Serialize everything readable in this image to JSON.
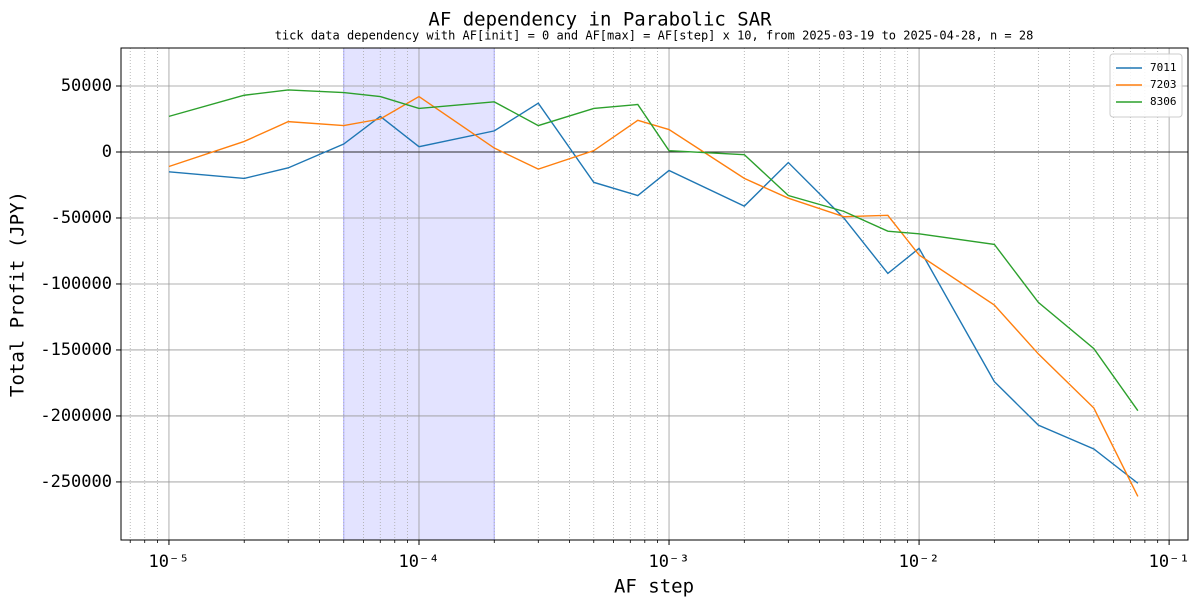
{
  "chart_data": {
    "type": "line",
    "title": "AF dependency in Parabolic SAR",
    "subtitle": "tick data dependency with AF[init] = 0 and AF[max] = AF[step] x 10, from 2025-03-19 to 2025-04-28, n = 28",
    "xlabel": "AF step",
    "ylabel": "Total Profit (JPY)",
    "xscale": "log",
    "grid": true,
    "legend": "upper right",
    "highlight": {
      "range": [
        5e-05,
        0.0002
      ],
      "color": "#0000ff"
    },
    "x": [
      1e-05,
      2e-05,
      3e-05,
      5e-05,
      7e-05,
      0.0001,
      0.0002,
      0.0003,
      0.0005,
      0.00075,
      0.001,
      0.002,
      0.003,
      0.005,
      0.0075,
      0.01,
      0.02,
      0.03,
      0.05,
      0.075
    ],
    "series": [
      {
        "name": "7011",
        "color": "#1f77b4",
        "values": [
          -15000,
          -20000,
          -12000,
          6000,
          27000,
          4000,
          16000,
          37000,
          -23000,
          -33000,
          -14000,
          -41000,
          -8000,
          -50000,
          -92000,
          -73000,
          -174000,
          -207000,
          -225000,
          -251000
        ]
      },
      {
        "name": "7203",
        "color": "#ff7f0e",
        "values": [
          -11000,
          8000,
          23000,
          20000,
          25000,
          42000,
          3000,
          -13000,
          1000,
          24000,
          17000,
          -20000,
          -35000,
          -49000,
          -48000,
          -78000,
          -116000,
          -153000,
          -194000,
          -261000
        ]
      },
      {
        "name": "8306",
        "color": "#2ca02c",
        "values": [
          27000,
          43000,
          47000,
          45000,
          42000,
          33000,
          38000,
          20000,
          33000,
          36000,
          1000,
          -2000,
          -33000,
          -45000,
          -60000,
          -62000,
          -70000,
          -114000,
          -149000,
          -196000
        ]
      }
    ],
    "xlim": [
      6.43e-06,
      0.119
    ],
    "ylim": [
      -294000,
      78800
    ],
    "xticks": [
      {
        "value": 1e-05,
        "label": "10⁻⁵"
      },
      {
        "value": 0.0001,
        "label": "10⁻⁴"
      },
      {
        "value": 0.001,
        "label": "10⁻³"
      },
      {
        "value": 0.01,
        "label": "10⁻²"
      },
      {
        "value": 0.1,
        "label": "10⁻¹"
      }
    ],
    "yticks": [
      -250000,
      -200000,
      -150000,
      -100000,
      -50000,
      0,
      50000
    ]
  }
}
